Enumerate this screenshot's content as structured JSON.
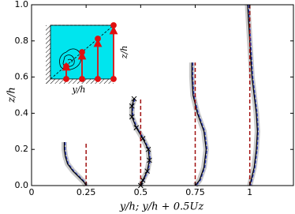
{
  "chart_data": {
    "type": "line",
    "x_label": "y/h;    y/h + 0.5Uz",
    "y_label": "z/h",
    "xlim": [
      0,
      1.2
    ],
    "ylim": [
      0,
      1
    ],
    "xticks": [
      0,
      0.25,
      0.5,
      0.75,
      1
    ],
    "yticks": [
      {
        "value": 0,
        "label": "0.0"
      },
      {
        "value": 0.2,
        "label": "0.2"
      },
      {
        "value": 0.4,
        "label": "0.4"
      },
      {
        "value": 0.6,
        "label": "0.6"
      },
      {
        "value": 0.8,
        "label": "0.8"
      },
      {
        "value": 1,
        "label": "1.0"
      }
    ],
    "series": [
      {
        "color": "#000000",
        "x": [
          0.15,
          0.15,
          0.155,
          0.165,
          0.19,
          0.215,
          0.24,
          0.25
        ],
        "values": [
          0.24,
          0.2,
          0.16,
          0.12,
          0.08,
          0.05,
          0.02,
          0
        ]
      },
      {
        "color": "#000000",
        "markers": "x",
        "x": [
          0.47,
          0.46,
          0.46,
          0.48,
          0.51,
          0.535,
          0.54,
          0.53,
          0.51,
          0.5
        ],
        "values": [
          0.48,
          0.44,
          0.38,
          0.32,
          0.26,
          0.2,
          0.14,
          0.08,
          0.03,
          0
        ]
      },
      {
        "color": "#000000",
        "x": [
          0.735,
          0.735,
          0.74,
          0.76,
          0.79,
          0.8,
          0.79,
          0.77,
          0.75
        ],
        "values": [
          0.68,
          0.6,
          0.5,
          0.4,
          0.3,
          0.2,
          0.1,
          0.03,
          0
        ]
      },
      {
        "color": "#000000",
        "x": [
          0.99,
          0.995,
          1.0,
          1.005,
          1.01,
          1.02,
          1.03,
          1.035,
          1.03,
          1.02,
          1.0
        ],
        "values": [
          1.0,
          0.9,
          0.8,
          0.7,
          0.6,
          0.5,
          0.4,
          0.3,
          0.2,
          0.1,
          0
        ]
      },
      {
        "color": "#a01010",
        "dash": true,
        "x": [
          0.25,
          0.25
        ],
        "values": [
          0,
          0.24
        ]
      },
      {
        "color": "#a01010",
        "dash": true,
        "x": [
          0.5,
          0.5
        ],
        "values": [
          0,
          0.48
        ]
      },
      {
        "color": "#a01010",
        "dash": true,
        "x": [
          0.75,
          0.75
        ],
        "values": [
          0,
          0.68
        ]
      },
      {
        "color": "#a01010",
        "dash": true,
        "x": [
          1,
          1
        ],
        "values": [
          0,
          1.0
        ]
      }
    ],
    "inset": {
      "x_label": "y/h",
      "y_label": "z/h"
    }
  }
}
